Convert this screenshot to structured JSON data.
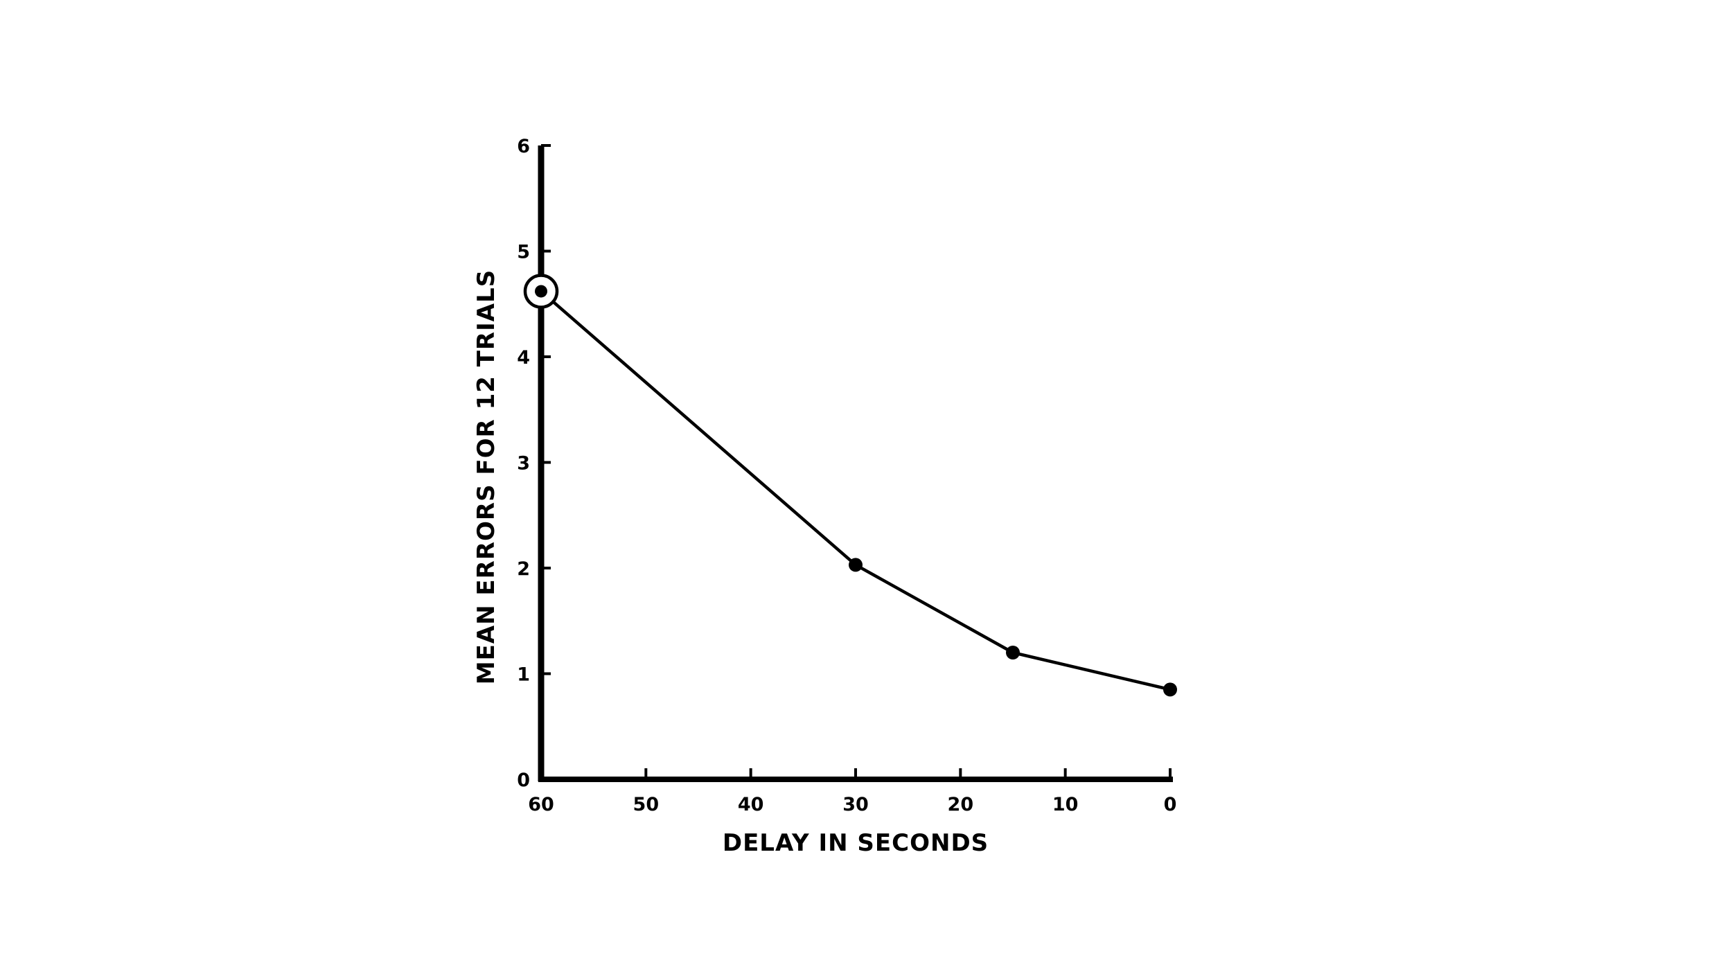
{
  "chart_data": {
    "type": "line",
    "title": "",
    "xlabel": "DELAY IN SECONDS",
    "ylabel": "MEAN ERRORS FOR 12 TRIALS",
    "xlim": [
      60,
      0
    ],
    "ylim": [
      0,
      6
    ],
    "x_reversed": true,
    "xticks": [
      60,
      50,
      40,
      30,
      20,
      10,
      0
    ],
    "yticks": [
      0,
      1,
      2,
      3,
      4,
      5,
      6
    ],
    "grid": false,
    "legend": "none",
    "series": [
      {
        "values": [
          {
            "x": 60,
            "y": 4.62,
            "marker": "circled-dot"
          },
          {
            "x": 30,
            "y": 2.03,
            "marker": "dot"
          },
          {
            "x": 15,
            "y": 1.2,
            "marker": "dot"
          },
          {
            "x": 0,
            "y": 0.85,
            "marker": "dot"
          }
        ]
      }
    ],
    "colors": {
      "line": "#000000",
      "axis": "#000000"
    }
  }
}
